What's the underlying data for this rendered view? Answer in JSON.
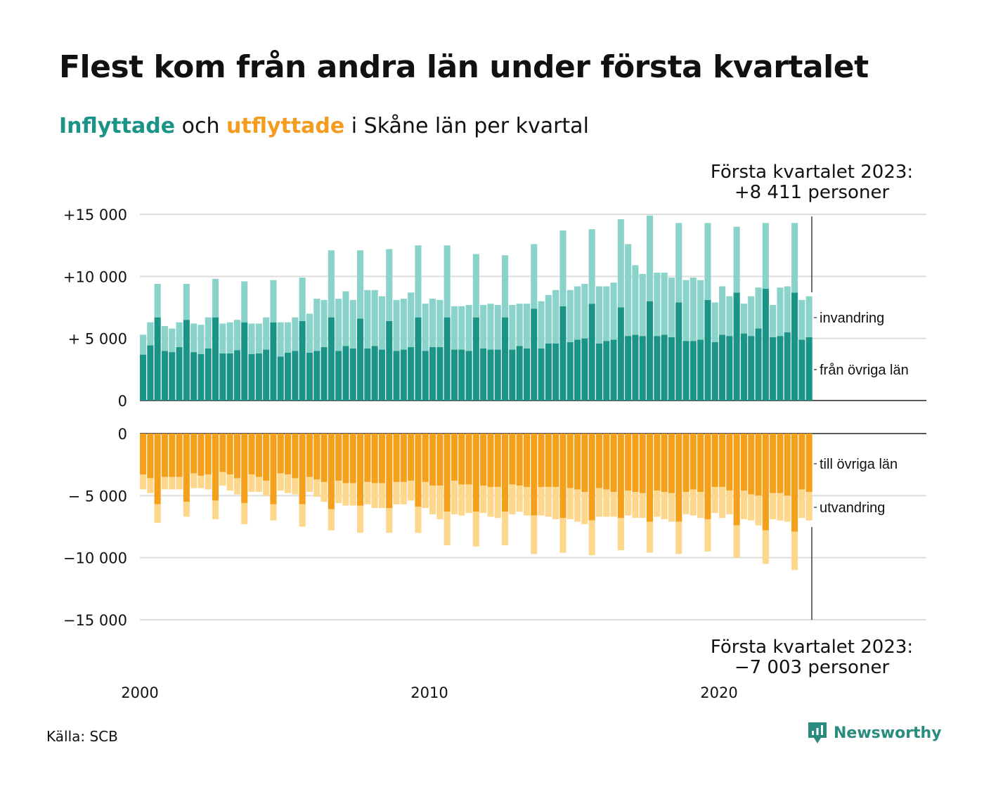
{
  "title": "Flest kom från andra län under första kvartalet",
  "subtitle": {
    "in_word": "Inflyttade",
    "mid": " och ",
    "out_word": "utflyttade",
    "rest": " i Skåne län per kvartal"
  },
  "colors": {
    "in_dark": "#1a9486",
    "in_light": "#8ad3ca",
    "out_dark": "#f5a01a",
    "out_light": "#fcd78c"
  },
  "source": "Källa: SCB",
  "logo": "Newsworthy",
  "chart_data": {
    "type": "bar",
    "x_label_ticks": [
      "2000",
      "2010",
      "2020"
    ],
    "top_y_ticks": [
      "+15 000",
      "+10 000",
      "+ 5 000",
      "0"
    ],
    "top_y_values": [
      15000,
      10000,
      5000,
      0
    ],
    "bottom_y_ticks": [
      "0",
      "− 5 000",
      "−10 000",
      "−15 000"
    ],
    "bottom_y_values": [
      0,
      -5000,
      -10000,
      -15000
    ],
    "top_ylim": [
      0,
      15000
    ],
    "bottom_ylim": [
      -15000,
      0
    ],
    "annotation_top": [
      "Första kvartalet 2023:",
      "+8 411 personer"
    ],
    "annotation_bottom": [
      "Första kvartalet 2023:",
      "−7 003 personer"
    ],
    "series": [
      {
        "name": "från övriga län",
        "values": [
          3700,
          4450,
          6700,
          4000,
          3900,
          4300,
          6500,
          3900,
          3750,
          4200,
          6700,
          3800,
          3800,
          4050,
          6300,
          3750,
          3800,
          4100,
          6300,
          3550,
          3850,
          4000,
          6400,
          3850,
          4000,
          4300,
          6700,
          4000,
          4400,
          4200,
          6600,
          4200,
          4400,
          4100,
          6400,
          4000,
          4100,
          4300,
          6700,
          4000,
          4300,
          4300,
          6700,
          4100,
          4100,
          4000,
          6700,
          4200,
          4100,
          4100,
          6700,
          4100,
          4400,
          4200,
          7400,
          4200,
          4600,
          4600,
          7600,
          4700,
          4900,
          5000,
          7800,
          4600,
          4800,
          4900,
          7500,
          5200,
          5300,
          5200,
          8000,
          5200,
          5300,
          5100,
          7900,
          4800,
          4800,
          4900,
          8100,
          4700,
          5300,
          5200,
          8700,
          5400,
          5200,
          5800,
          9000,
          5100,
          5200,
          5500,
          8700,
          4900,
          5100
        ]
      },
      {
        "name": "invandring",
        "values": [
          1600,
          1850,
          2700,
          2000,
          1900,
          2000,
          2900,
          2300,
          2350,
          2500,
          3100,
          2400,
          2500,
          2450,
          3300,
          2450,
          2400,
          2600,
          3400,
          2750,
          2450,
          2700,
          3500,
          3150,
          4200,
          3800,
          5400,
          4200,
          4400,
          3900,
          5500,
          4700,
          4500,
          4300,
          5800,
          4100,
          4100,
          4400,
          5800,
          3800,
          3900,
          3800,
          5800,
          3500,
          3500,
          3700,
          5100,
          3500,
          3700,
          3600,
          5000,
          3600,
          3400,
          3600,
          5200,
          3800,
          3900,
          4300,
          6100,
          4200,
          4300,
          4400,
          6000,
          4600,
          4400,
          4600,
          7100,
          7400,
          5600,
          5000,
          6900,
          5100,
          5000,
          4800,
          6400,
          4900,
          5100,
          4800,
          6200,
          3200,
          3900,
          3200,
          5300,
          2400,
          3200,
          3300,
          5300,
          2600,
          3900,
          3700,
          5600,
          3200,
          3300
        ]
      },
      {
        "name": "till övriga län",
        "values": [
          -3300,
          -3600,
          -5700,
          -3500,
          -3500,
          -3500,
          -5500,
          -3200,
          -3400,
          -3300,
          -5400,
          -3100,
          -3300,
          -3600,
          -5600,
          -3300,
          -3500,
          -3800,
          -5700,
          -3200,
          -3300,
          -3600,
          -5700,
          -3500,
          -3700,
          -3900,
          -6100,
          -3800,
          -4000,
          -4000,
          -5800,
          -3900,
          -4000,
          -4000,
          -6000,
          -3900,
          -3900,
          -3800,
          -5900,
          -3900,
          -4200,
          -4200,
          -6300,
          -3800,
          -4100,
          -4100,
          -6300,
          -4200,
          -4300,
          -4300,
          -6300,
          -4100,
          -4200,
          -4300,
          -6600,
          -4300,
          -4300,
          -4300,
          -6800,
          -4400,
          -4500,
          -4700,
          -7000,
          -4400,
          -4500,
          -4700,
          -6800,
          -4600,
          -4700,
          -4800,
          -7100,
          -4600,
          -4700,
          -4800,
          -7100,
          -4700,
          -4500,
          -4700,
          -6900,
          -4300,
          -4300,
          -4600,
          -7400,
          -4600,
          -4900,
          -5000,
          -7800,
          -4800,
          -4800,
          -5000,
          -7900,
          -4500,
          -4700
        ]
      },
      {
        "name": "utvandring",
        "values": [
          -1200,
          -1200,
          -1500,
          -1000,
          -1000,
          -1000,
          -1200,
          -1200,
          -1000,
          -1200,
          -1500,
          -1100,
          -1300,
          -1300,
          -1700,
          -1400,
          -1200,
          -1200,
          -1300,
          -1400,
          -1500,
          -1300,
          -1800,
          -1200,
          -1400,
          -1600,
          -1700,
          -1800,
          -1800,
          -1800,
          -2200,
          -1800,
          -2000,
          -2000,
          -2000,
          -1800,
          -1800,
          -1600,
          -2100,
          -2100,
          -2300,
          -2700,
          -2700,
          -2700,
          -2500,
          -2300,
          -2800,
          -2200,
          -2400,
          -2500,
          -2700,
          -2400,
          -2100,
          -2300,
          -3100,
          -2300,
          -2400,
          -2600,
          -2800,
          -2500,
          -2600,
          -2600,
          -2800,
          -2300,
          -2200,
          -2000,
          -2600,
          -2000,
          -2100,
          -2000,
          -2500,
          -2100,
          -2200,
          -2300,
          -2600,
          -1800,
          -2100,
          -2100,
          -2600,
          -2100,
          -2500,
          -1900,
          -2600,
          -2300,
          -2100,
          -2400,
          -2700,
          -2100,
          -2200,
          -2100,
          -3100,
          -2300,
          -2300
        ]
      }
    ]
  }
}
